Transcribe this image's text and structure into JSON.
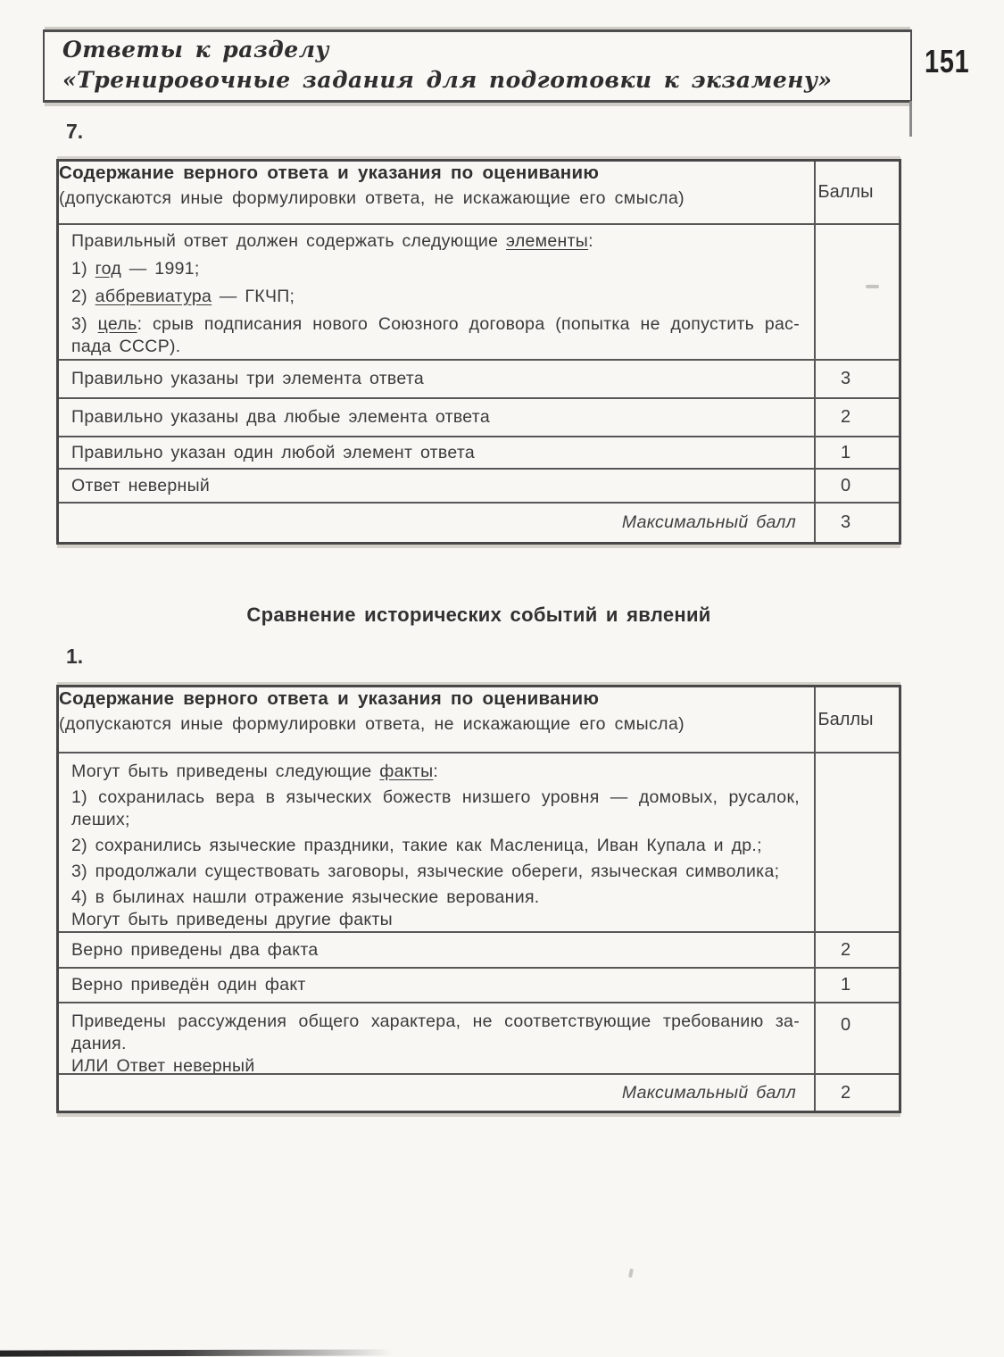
{
  "page": {
    "number": "151"
  },
  "colors": {
    "page_bg": "#f8f7f4",
    "text": "#3a3a3a",
    "border": "#474747"
  },
  "header": {
    "line1": "Ответы к разделу",
    "line2": "«Тренировочные задания для подготовки к экзамену»"
  },
  "items": {
    "item7": "7.",
    "item1": "1."
  },
  "section_title": "Сравнение исторических событий и явлений",
  "table_header": {
    "title": "Содержание верного ответа и указания по оцениванию",
    "subtitle": "(допускаются иные формулировки ответа, не искажающие его смысла)",
    "score_col": "Баллы"
  },
  "table1": {
    "answer_lines": [
      {
        "pre": "Правильный ответ должен содержать следующие ",
        "u": "элементы",
        "post": ":"
      },
      {
        "pre": "1) ",
        "u": "год",
        "post": " — 1991;"
      },
      {
        "pre": "2) ",
        "u": "аббревиатура",
        "post": " — ГКЧП;"
      },
      {
        "pre": "3) ",
        "u": "цель",
        "post": ": срыв подписания нового Союзного договора (попытка не допустить рас-"
      },
      {
        "pre": "пада СССР).",
        "u": "",
        "post": ""
      }
    ],
    "score_rows": [
      {
        "text": "Правильно указаны три элемента ответа",
        "score": "3"
      },
      {
        "text": "Правильно указаны два любые элемента ответа",
        "score": "2"
      },
      {
        "text": "Правильно указан один любой элемент ответа",
        "score": "1"
      },
      {
        "text": "Ответ неверный",
        "score": "0"
      }
    ],
    "max_row": {
      "label": "Максимальный балл",
      "score": "3"
    }
  },
  "table2": {
    "answer_lines": [
      {
        "pre": "Могут быть приведены следующие ",
        "u": "факты",
        "post": ":"
      },
      {
        "pre": "1) сохранилась вера в языческих божеств низшего уровня — домовых, русалок,",
        "u": "",
        "post": ""
      },
      {
        "pre": "леших;",
        "u": "",
        "post": ""
      },
      {
        "pre": "2) сохранились языческие праздники, такие как Масленица, Иван Купала и др.;",
        "u": "",
        "post": ""
      },
      {
        "pre": "3) продолжали существовать заговоры, языческие обереги, языческая символика;",
        "u": "",
        "post": ""
      },
      {
        "pre": "4) в былинах нашли отражение языческие верования.",
        "u": "",
        "post": ""
      },
      {
        "pre": "Могут быть приведены другие факты",
        "u": "",
        "post": ""
      }
    ],
    "score_rows": [
      {
        "text": "Верно приведены два факта",
        "score": "2"
      },
      {
        "text": "Верно приведён один факт",
        "score": "1"
      }
    ],
    "zero_row": {
      "lines": [
        "Приведены рассуждения общего характера, не соответствующие требованию за-",
        "дания.",
        "ИЛИ Ответ неверный"
      ],
      "score": "0"
    },
    "max_row": {
      "label": "Максимальный балл",
      "score": "2"
    }
  }
}
